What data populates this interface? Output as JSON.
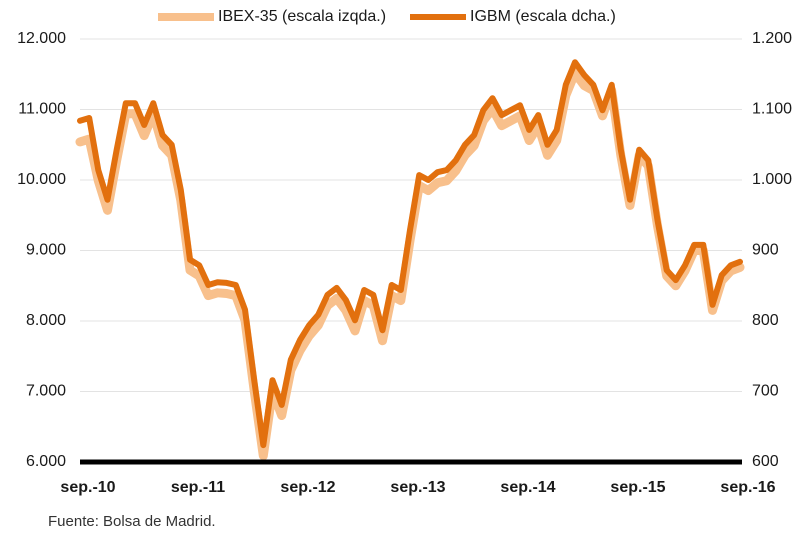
{
  "chart_data": {
    "type": "line",
    "source": "Fuente: Bolsa de Madrid.",
    "categories": [
      "sep.-10",
      null,
      null,
      null,
      null,
      null,
      null,
      null,
      null,
      null,
      null,
      null,
      "sep.-11",
      null,
      null,
      null,
      null,
      null,
      null,
      null,
      null,
      null,
      null,
      null,
      "sep.-12",
      null,
      null,
      null,
      null,
      null,
      null,
      null,
      null,
      null,
      null,
      null,
      "sep.-13",
      null,
      null,
      null,
      null,
      null,
      null,
      null,
      null,
      null,
      null,
      null,
      "sep.-14",
      null,
      null,
      null,
      null,
      null,
      null,
      null,
      null,
      null,
      null,
      null,
      "sep.-15",
      null,
      null,
      null,
      null,
      null,
      null,
      null,
      null,
      null,
      null,
      null,
      "sep.-16"
    ],
    "series": [
      {
        "name": "IBEX-35 (escala izqda.)",
        "color": "#f8c08c",
        "axis": "y",
        "values": [
          10540,
          10580,
          9990,
          9570,
          10280,
          10940,
          10940,
          10630,
          10940,
          10490,
          10350,
          9710,
          8720,
          8640,
          8360,
          8400,
          8390,
          8360,
          8010,
          7010,
          6090,
          7010,
          6660,
          7300,
          7580,
          7790,
          7940,
          8220,
          8320,
          8150,
          7860,
          8290,
          8220,
          7720,
          8360,
          8290,
          9140,
          9920,
          9850,
          9960,
          9990,
          10130,
          10350,
          10490,
          10840,
          11010,
          10770,
          10840,
          10910,
          10560,
          10770,
          10350,
          10560,
          11200,
          11520,
          11340,
          11270,
          10910,
          11270,
          10350,
          9640,
          10350,
          10200,
          9350,
          8640,
          8500,
          8710,
          9000,
          9000,
          8150,
          8570,
          8710,
          8760
        ]
      },
      {
        "name": "IGBM (escala dcha.)",
        "color": "#e2700e",
        "axis": "y2",
        "values": [
          1084,
          1088,
          1014,
          972,
          1043,
          1109,
          1109,
          1078,
          1109,
          1064,
          1050,
          986,
          887,
          879,
          851,
          855,
          854,
          851,
          816,
          716,
          624,
          716,
          681,
          745,
          773,
          794,
          809,
          837,
          847,
          830,
          801,
          844,
          837,
          787,
          851,
          844,
          929,
          1007,
          1000,
          1011,
          1014,
          1028,
          1050,
          1064,
          1099,
          1116,
          1092,
          1099,
          1106,
          1071,
          1092,
          1050,
          1071,
          1135,
          1167,
          1149,
          1135,
          1099,
          1135,
          1043,
          972,
          1043,
          1028,
          943,
          872,
          858,
          879,
          908,
          908,
          823,
          865,
          879,
          884
        ]
      }
    ],
    "ylim": [
      6000,
      12000
    ],
    "yticks": [
      {
        "value": 6000,
        "label": "6.000"
      },
      {
        "value": 7000,
        "label": "7.000"
      },
      {
        "value": 8000,
        "label": "8.000"
      },
      {
        "value": 9000,
        "label": "9.000"
      },
      {
        "value": 10000,
        "label": "10.000"
      },
      {
        "value": 11000,
        "label": "11.000"
      },
      {
        "value": 12000,
        "label": "12.000"
      }
    ],
    "y2lim": [
      600,
      1200
    ],
    "y2ticks": [
      600,
      700,
      800,
      900,
      {
        "value": 1000,
        "label": "1.000"
      },
      {
        "value": 1100,
        "label": "1.100"
      },
      {
        "value": 1200,
        "label": "1.200"
      }
    ],
    "grid": true,
    "legend": "top"
  }
}
